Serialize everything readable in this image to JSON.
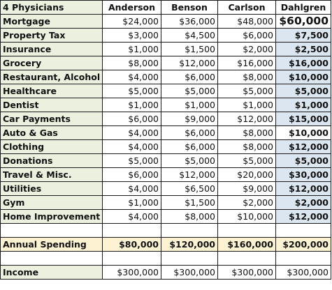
{
  "header": {
    "corner": "4 Physicians",
    "columns": [
      "Anderson",
      "Benson",
      "Carlson",
      "Dahlgren"
    ]
  },
  "rows": [
    {
      "label": "Mortgage",
      "values": [
        "$24,000",
        "$36,000",
        "$48,000",
        "$60,000"
      ]
    },
    {
      "label": "Property Tax",
      "values": [
        "$3,000",
        "$4,500",
        "$6,000",
        "$7,500"
      ]
    },
    {
      "label": "Insurance",
      "values": [
        "$1,000",
        "$1,500",
        "$2,000",
        "$2,500"
      ]
    },
    {
      "label": "Grocery",
      "values": [
        "$8,000",
        "$12,000",
        "$16,000",
        "$16,000"
      ]
    },
    {
      "label": "Restaurant, Alcohol",
      "values": [
        "$4,000",
        "$6,000",
        "$8,000",
        "$10,000"
      ]
    },
    {
      "label": "Healthcare",
      "values": [
        "$5,000",
        "$5,000",
        "$5,000",
        "$5,000"
      ]
    },
    {
      "label": "Dentist",
      "values": [
        "$1,000",
        "$1,000",
        "$1,000",
        "$1,000"
      ]
    },
    {
      "label": "Car Payments",
      "values": [
        "$6,000",
        "$9,000",
        "$12,000",
        "$15,000"
      ]
    },
    {
      "label": "Auto & Gas",
      "values": [
        "$4,000",
        "$6,000",
        "$8,000",
        "$10,000"
      ]
    },
    {
      "label": "Clothing",
      "values": [
        "$4,000",
        "$6,000",
        "$8,000",
        "$12,000"
      ]
    },
    {
      "label": "Donations",
      "values": [
        "$5,000",
        "$5,000",
        "$5,000",
        "$5,000"
      ]
    },
    {
      "label": "Travel & Misc.",
      "values": [
        "$6,000",
        "$12,000",
        "$20,000",
        "$30,000"
      ]
    },
    {
      "label": "Utilities",
      "values": [
        "$4,000",
        "$6,500",
        "$9,000",
        "$12,000"
      ]
    },
    {
      "label": "Gym",
      "values": [
        "$1,000",
        "$1,500",
        "$2,000",
        "$2,000"
      ]
    },
    {
      "label": "Home Improvement",
      "values": [
        "$4,000",
        "$8,000",
        "$10,000",
        "$12,000"
      ]
    }
  ],
  "total": {
    "label": "Annual Spending",
    "values": [
      "$80,000",
      "$120,000",
      "$160,000",
      "$200,000"
    ]
  },
  "income": {
    "label": "Income",
    "values": [
      "$300,000",
      "$300,000",
      "$300,000",
      "$300,000"
    ]
  },
  "colors": {
    "label_fill": "#ebf1de",
    "dahlgren_fill": "#dce6f1",
    "total_fill": "#fdf3d3",
    "grid_line": "#1a1a1a"
  }
}
